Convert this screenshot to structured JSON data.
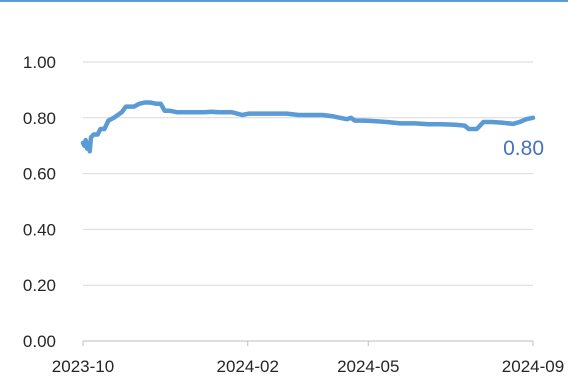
{
  "colors": {
    "series": "#5B9BD5",
    "end_label": "#4472C4",
    "top_bar": "#5B9BD5",
    "grid": "#D9D9D9",
    "axis": "#BFBFBF",
    "text": "#262626"
  },
  "chart_data": {
    "type": "line",
    "title": "",
    "xlabel": "",
    "ylabel": "",
    "ylim": [
      0,
      1.0
    ],
    "xlim": [
      "2023-10-01",
      "2024-09-01"
    ],
    "y_ticks": [
      "0.00",
      "0.20",
      "0.40",
      "0.60",
      "0.80",
      "1.00"
    ],
    "x_ticks": [
      {
        "label": "2023-10",
        "date": "2023-10-01"
      },
      {
        "label": "2024-02",
        "date": "2024-02-01"
      },
      {
        "label": "2024-05",
        "date": "2024-05-01"
      },
      {
        "label": "2024-09",
        "date": "2024-09-01"
      }
    ],
    "grid": "horizontal",
    "legend": "none",
    "end_label": "0.80",
    "series": [
      {
        "points": [
          [
            "2023-10-01",
            0.71
          ],
          [
            "2023-10-02",
            0.7
          ],
          [
            "2023-10-03",
            0.72
          ],
          [
            "2023-10-04",
            0.69
          ],
          [
            "2023-10-05",
            0.71
          ],
          [
            "2023-10-06",
            0.68
          ],
          [
            "2023-10-07",
            0.73
          ],
          [
            "2023-10-09",
            0.74
          ],
          [
            "2023-10-12",
            0.74
          ],
          [
            "2023-10-14",
            0.76
          ],
          [
            "2023-10-17",
            0.76
          ],
          [
            "2023-10-20",
            0.79
          ],
          [
            "2023-10-24",
            0.8
          ],
          [
            "2023-10-27",
            0.81
          ],
          [
            "2023-10-30",
            0.82
          ],
          [
            "2023-11-02",
            0.84
          ],
          [
            "2023-11-05",
            0.84
          ],
          [
            "2023-11-08",
            0.84
          ],
          [
            "2023-11-12",
            0.85
          ],
          [
            "2023-11-16",
            0.855
          ],
          [
            "2023-11-20",
            0.855
          ],
          [
            "2023-11-25",
            0.85
          ],
          [
            "2023-11-28",
            0.85
          ],
          [
            "2023-12-01",
            0.825
          ],
          [
            "2023-12-05",
            0.825
          ],
          [
            "2023-12-10",
            0.82
          ],
          [
            "2023-12-15",
            0.82
          ],
          [
            "2023-12-20",
            0.82
          ],
          [
            "2023-12-25",
            0.82
          ],
          [
            "2023-12-31",
            0.82
          ],
          [
            "2024-01-05",
            0.822
          ],
          [
            "2024-01-10",
            0.82
          ],
          [
            "2024-01-15",
            0.82
          ],
          [
            "2024-01-20",
            0.82
          ],
          [
            "2024-01-28",
            0.81
          ],
          [
            "2024-02-02",
            0.815
          ],
          [
            "2024-02-10",
            0.815
          ],
          [
            "2024-02-20",
            0.815
          ],
          [
            "2024-03-01",
            0.815
          ],
          [
            "2024-03-10",
            0.81
          ],
          [
            "2024-03-20",
            0.81
          ],
          [
            "2024-03-28",
            0.81
          ],
          [
            "2024-04-05",
            0.805
          ],
          [
            "2024-04-10",
            0.8
          ],
          [
            "2024-04-15",
            0.795
          ],
          [
            "2024-04-18",
            0.8
          ],
          [
            "2024-04-21",
            0.79
          ],
          [
            "2024-04-28",
            0.79
          ],
          [
            "2024-05-05",
            0.788
          ],
          [
            "2024-05-15",
            0.785
          ],
          [
            "2024-05-25",
            0.78
          ],
          [
            "2024-06-05",
            0.78
          ],
          [
            "2024-06-15",
            0.777
          ],
          [
            "2024-06-25",
            0.777
          ],
          [
            "2024-07-05",
            0.775
          ],
          [
            "2024-07-12",
            0.772
          ],
          [
            "2024-07-15",
            0.76
          ],
          [
            "2024-07-21",
            0.76
          ],
          [
            "2024-07-24",
            0.775
          ],
          [
            "2024-07-26",
            0.785
          ],
          [
            "2024-08-01",
            0.785
          ],
          [
            "2024-08-10",
            0.782
          ],
          [
            "2024-08-17",
            0.778
          ],
          [
            "2024-08-22",
            0.785
          ],
          [
            "2024-08-27",
            0.795
          ],
          [
            "2024-09-01",
            0.8
          ]
        ]
      }
    ]
  }
}
